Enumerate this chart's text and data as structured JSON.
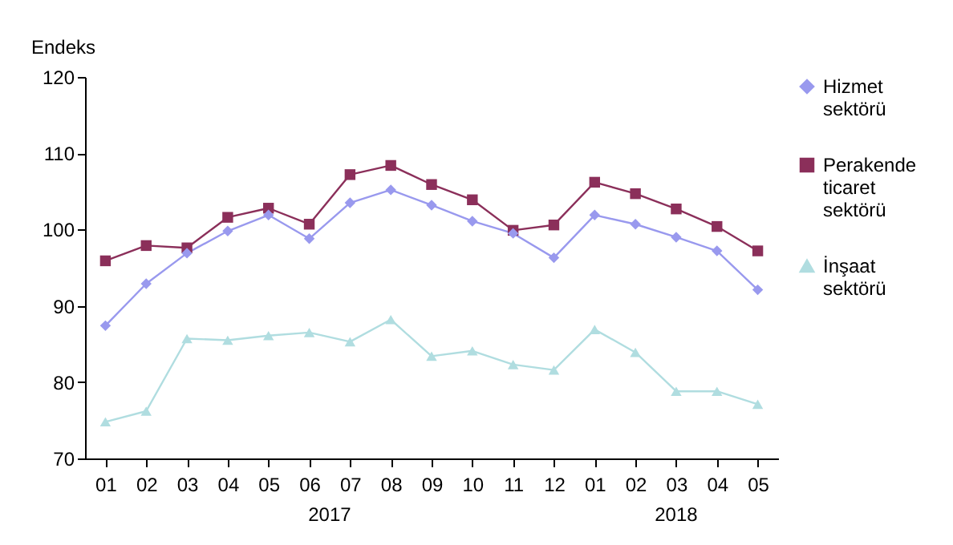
{
  "chart_data": {
    "type": "line",
    "ylabel": "Endeks",
    "categories": [
      "01",
      "02",
      "03",
      "04",
      "05",
      "06",
      "07",
      "08",
      "09",
      "10",
      "11",
      "12",
      "01",
      "02",
      "03",
      "04",
      "05"
    ],
    "ylim": [
      70,
      120
    ],
    "yticks": [
      70,
      80,
      90,
      100,
      110,
      120
    ],
    "grid": false,
    "legend": "right",
    "annotations": [
      "2017",
      "2018"
    ],
    "series": [
      {
        "name": "Hizmet sektörü",
        "color": "#9999ee",
        "marker": "diamond",
        "values": [
          87.4,
          92.9,
          96.9,
          99.8,
          101.9,
          98.8,
          103.5,
          105.2,
          103.2,
          101.1,
          99.5,
          96.3,
          101.9,
          100.7,
          99.0,
          97.2,
          92.1
        ]
      },
      {
        "name": "Perakende ticaret sektörü",
        "color": "#8b2f5a",
        "marker": "square",
        "values": [
          95.9,
          97.9,
          97.6,
          101.6,
          102.8,
          100.7,
          107.2,
          108.4,
          105.9,
          103.9,
          99.9,
          100.6,
          106.2,
          104.7,
          102.7,
          100.4,
          97.2
        ]
      },
      {
        "name": "İnşaat sektörü",
        "color": "#b0dde0",
        "marker": "triangle",
        "values": [
          74.8,
          76.2,
          85.7,
          85.5,
          86.1,
          86.5,
          85.3,
          88.2,
          83.4,
          84.1,
          82.3,
          81.6,
          86.9,
          83.9,
          78.8,
          78.8,
          77.1
        ]
      }
    ]
  }
}
